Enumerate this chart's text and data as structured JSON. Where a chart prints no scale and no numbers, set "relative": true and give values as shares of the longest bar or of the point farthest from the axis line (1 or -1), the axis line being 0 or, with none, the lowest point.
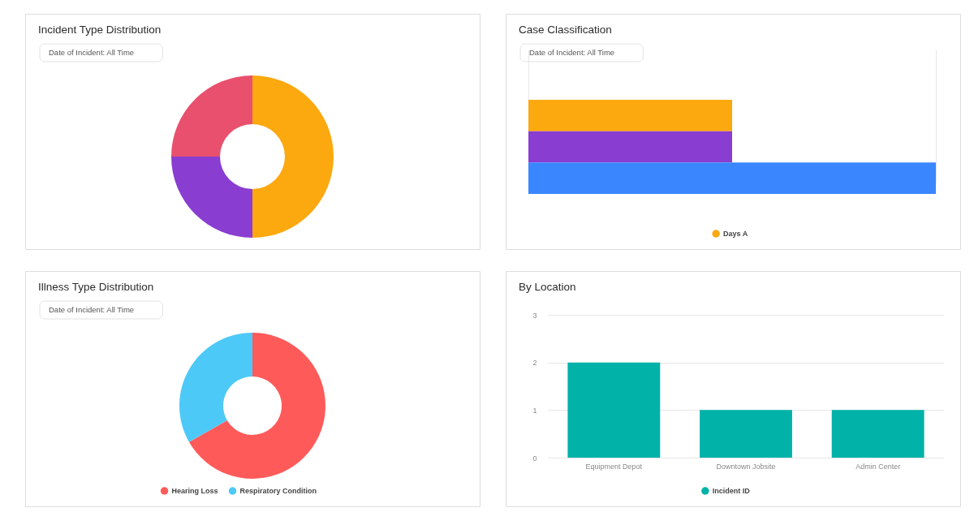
{
  "chart_data": [
    {
      "type": "donut",
      "title": "Incident Type Distribution",
      "annotations": [
        "Date of Incident: All Time"
      ],
      "categories": [
        null,
        null,
        null
      ],
      "values": [
        50,
        25,
        25
      ],
      "colors": [
        "#fca80f",
        "#8a3dd1",
        "#e8506e"
      ]
    },
    {
      "type": "bar",
      "orientation": "horizontal",
      "title": "Case Classification",
      "annotations": [
        "Date of Incident: All Time"
      ],
      "categories": [
        null
      ],
      "relative": true,
      "series": [
        {
          "name": "Days A",
          "color": "#fca80f",
          "values": [
            0.5
          ]
        },
        {
          "color": "#8a3dd1",
          "values": [
            0.5
          ]
        },
        {
          "color": "#3a86ff",
          "values": [
            1
          ]
        }
      ],
      "grid": "x",
      "legend": "bottom"
    },
    {
      "type": "donut",
      "title": "Illness Type Distribution",
      "annotations": [
        "Date of Incident: All Time"
      ],
      "categories": [
        "Hearing Loss",
        "Respiratory Condition"
      ],
      "values": [
        66.7,
        33.3
      ],
      "colors": [
        "#ff5a5a",
        "#4dc9f8"
      ],
      "legend": "bottom"
    },
    {
      "type": "bar",
      "title": "By Location",
      "categories": [
        "Equipment Depot",
        "Downtown Jobsite",
        "Admin Center"
      ],
      "series": [
        {
          "name": "Incident ID",
          "color": "#00b2a8",
          "values": [
            2,
            1,
            1
          ]
        }
      ],
      "ylim": [
        0,
        3
      ],
      "yticks": [
        0,
        1,
        2,
        3
      ],
      "grid": "y",
      "legend": "bottom"
    }
  ]
}
